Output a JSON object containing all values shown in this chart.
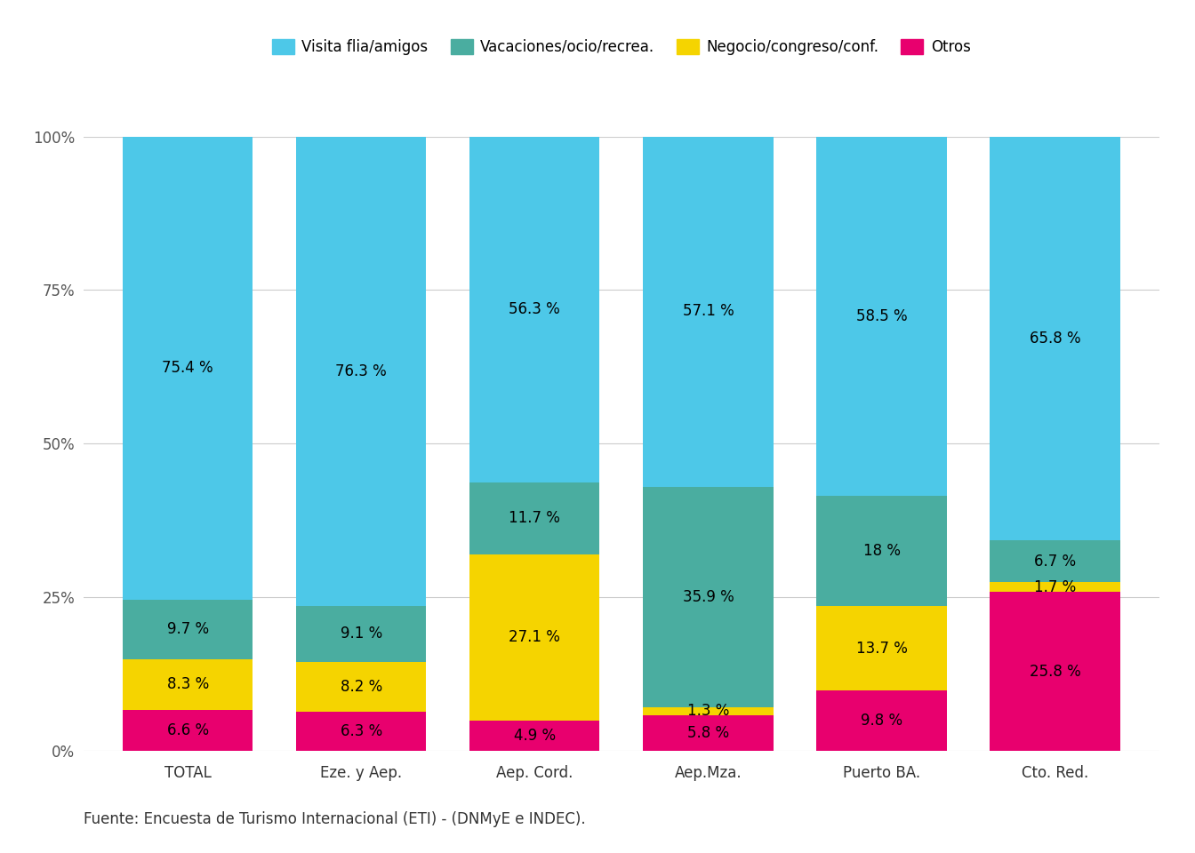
{
  "categories": [
    "TOTAL",
    "Eze. y Aep.",
    "Aep. Cord.",
    "Aep.Mza.",
    "Puerto BA.",
    "Cto. Red."
  ],
  "series": {
    "Otros": [
      6.6,
      6.3,
      4.9,
      5.8,
      9.8,
      25.8
    ],
    "Negocio/congreso/conf.": [
      8.3,
      8.2,
      27.1,
      1.3,
      13.7,
      1.7
    ],
    "Vacaciones/ocio/recrea.": [
      9.7,
      9.1,
      11.7,
      35.9,
      18.0,
      6.7
    ],
    "Visita flia/amigos": [
      75.4,
      76.3,
      56.3,
      57.1,
      58.5,
      65.8
    ]
  },
  "colors": {
    "Visita flia/amigos": "#4DC8E8",
    "Vacaciones/ocio/recrea.": "#4AADA0",
    "Negocio/congreso/conf.": "#F5D400",
    "Otros": "#E8006E"
  },
  "labels": {
    "Otros": [
      "6.6 %",
      "6.3 %",
      "4.9 %",
      "5.8 %",
      "9.8 %",
      "25.8 %"
    ],
    "Negocio/congreso/conf.": [
      "8.3 %",
      "8.2 %",
      "27.1 %",
      "1.3 %",
      "13.7 %",
      "1.7 %"
    ],
    "Vacaciones/ocio/recrea.": [
      "9.7 %",
      "9.1 %",
      "11.7 %",
      "35.9 %",
      "18 %",
      "6.7 %"
    ],
    "Visita flia/amigos": [
      "75.4 %",
      "76.3 %",
      "56.3 %",
      "57.1 %",
      "58.5 %",
      "65.8 %"
    ]
  },
  "yticks": [
    0,
    25,
    50,
    75,
    100
  ],
  "ytick_labels": [
    "0%",
    "25%",
    "50%",
    "75%",
    "100%"
  ],
  "legend_order": [
    "Visita flia/amigos",
    "Vacaciones/ocio/recrea.",
    "Negocio/congreso/conf.",
    "Otros"
  ],
  "footer": "Fuente: Encuesta de Turismo Internacional (ETI) - (DNMyE e INDEC).",
  "background_color": "#FFFFFF",
  "bar_width": 0.75,
  "label_fontsize": 12,
  "tick_fontsize": 12,
  "legend_fontsize": 12,
  "footer_fontsize": 12
}
